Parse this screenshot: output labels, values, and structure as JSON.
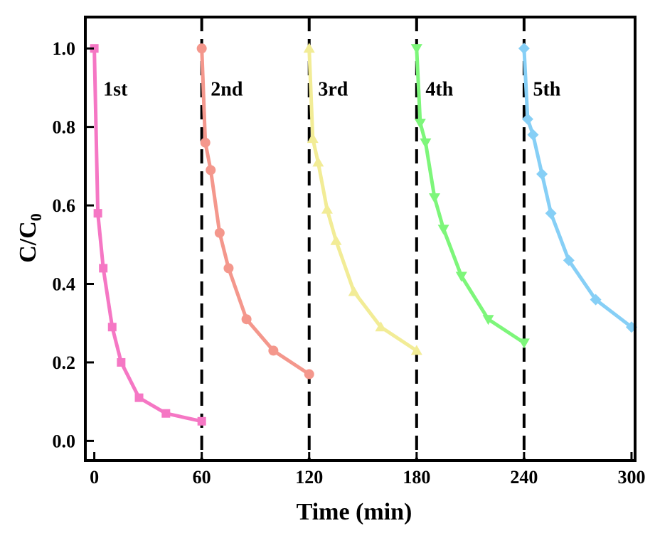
{
  "chart_data": {
    "type": "line",
    "title": "",
    "xlabel": "Time (min)",
    "ylabel_main": "C/C",
    "ylabel_sub": "0",
    "xlim": [
      -5,
      302
    ],
    "ylim": [
      -0.05,
      1.08
    ],
    "xticks": [
      0,
      60,
      120,
      180,
      240,
      300
    ],
    "xtick_labels": [
      "0",
      "60",
      "120",
      "180",
      "240",
      "300"
    ],
    "yticks": [
      0.0,
      0.2,
      0.4,
      0.6,
      0.8,
      1.0
    ],
    "ytick_labels": [
      "0.0",
      "0.2",
      "0.4",
      "0.6",
      "0.8",
      "1.0"
    ],
    "cycle_dividers": [
      60,
      120,
      180,
      240
    ],
    "series": [
      {
        "name": "1st",
        "color": "#f577c4",
        "marker": "square",
        "label_at": [
          5,
          0.88
        ],
        "x": [
          0,
          2,
          5,
          10,
          15,
          25,
          40,
          60
        ],
        "y": [
          1.0,
          0.58,
          0.44,
          0.29,
          0.2,
          0.11,
          0.07,
          0.05
        ]
      },
      {
        "name": "2nd",
        "color": "#f4978c",
        "marker": "circle",
        "label_at": [
          65,
          0.88
        ],
        "x": [
          60,
          62,
          65,
          70,
          75,
          85,
          100,
          120
        ],
        "y": [
          1.0,
          0.76,
          0.69,
          0.53,
          0.44,
          0.31,
          0.23,
          0.17
        ]
      },
      {
        "name": "3rd",
        "color": "#f2ec96",
        "marker": "triangle-up",
        "label_at": [
          125,
          0.88
        ],
        "x": [
          120,
          122,
          125,
          130,
          135,
          145,
          160,
          180
        ],
        "y": [
          1.0,
          0.77,
          0.71,
          0.59,
          0.51,
          0.38,
          0.29,
          0.23
        ]
      },
      {
        "name": "4th",
        "color": "#7df67a",
        "marker": "triangle-down",
        "label_at": [
          185,
          0.88
        ],
        "x": [
          180,
          182,
          185,
          190,
          195,
          205,
          220,
          240
        ],
        "y": [
          1.0,
          0.81,
          0.76,
          0.62,
          0.54,
          0.42,
          0.31,
          0.25
        ]
      },
      {
        "name": "5th",
        "color": "#86cff6",
        "marker": "diamond",
        "label_at": [
          245,
          0.88
        ],
        "x": [
          240,
          242,
          245,
          250,
          255,
          265,
          280,
          300
        ],
        "y": [
          1.0,
          0.82,
          0.78,
          0.68,
          0.58,
          0.46,
          0.36,
          0.29
        ]
      }
    ]
  }
}
